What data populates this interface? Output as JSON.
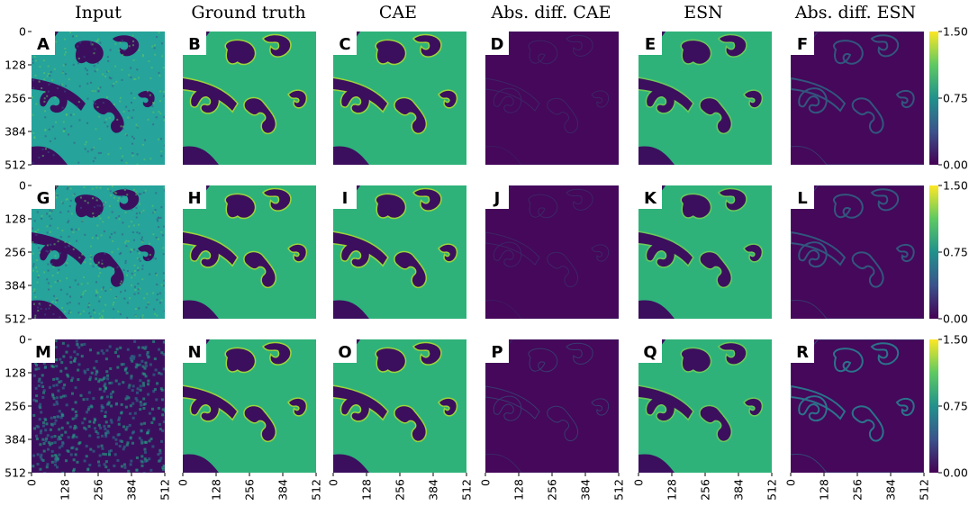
{
  "figure": {
    "column_titles": [
      "Input",
      "Ground truth",
      "CAE",
      "Abs. diff. CAE",
      "ESN",
      "Abs. diff. ESN"
    ],
    "panel_labels": [
      [
        "A",
        "B",
        "C",
        "D",
        "E",
        "F"
      ],
      [
        "G",
        "H",
        "I",
        "J",
        "K",
        "L"
      ],
      [
        "M",
        "N",
        "O",
        "P",
        "Q",
        "R"
      ]
    ],
    "y_tick_labels": [
      "0",
      "128",
      "256",
      "384",
      "512"
    ],
    "x_tick_labels": [
      "0",
      "128",
      "256",
      "384",
      "512"
    ],
    "colorbar": {
      "tick_labels": [
        "1.50",
        "0.75",
        "0.00"
      ],
      "min": 0.0,
      "max": 1.5,
      "colormap": [
        "#440154",
        "#3b528b",
        "#21918c",
        "#5ec962",
        "#fde725"
      ]
    },
    "colors": {
      "background_dark": "#3b0f5e",
      "field_green": "#2fb27a",
      "field_bright": "#7ad151",
      "field_yellow": "#b8de29",
      "boundary_teal": "#2a788e"
    }
  }
}
